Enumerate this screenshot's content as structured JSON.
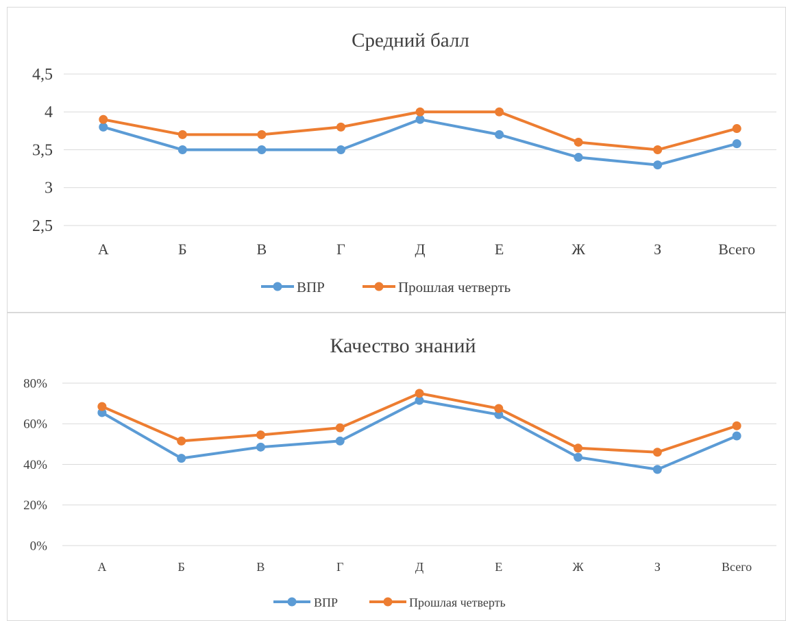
{
  "chart_data": [
    {
      "type": "line",
      "title": "Средний балл",
      "categories": [
        "А",
        "Б",
        "В",
        "Г",
        "Д",
        "Е",
        "Ж",
        "З",
        "Всего"
      ],
      "ylim": [
        2.5,
        4.5
      ],
      "y_ticks": [
        "2,5",
        "3",
        "3,5",
        "4",
        "4,5"
      ],
      "grid": true,
      "legend": "bottom",
      "series": [
        {
          "name": "ВПР",
          "color": "#5b9bd5",
          "values": [
            3.8,
            3.5,
            3.5,
            3.5,
            3.9,
            3.7,
            3.4,
            3.3,
            3.58
          ]
        },
        {
          "name": "Прошлая четверть",
          "color": "#ed7d31",
          "values": [
            3.9,
            3.7,
            3.7,
            3.8,
            4.0,
            4.0,
            3.6,
            3.5,
            3.78
          ]
        }
      ]
    },
    {
      "type": "line",
      "title": "Качество знаний",
      "categories": [
        "А",
        "Б",
        "В",
        "Г",
        "Д",
        "Е",
        "Ж",
        "З",
        "Всего"
      ],
      "ylim": [
        0,
        80
      ],
      "y_ticks": [
        "0%",
        "20%",
        "40%",
        "60%",
        "80%"
      ],
      "grid": true,
      "legend": "bottom",
      "series": [
        {
          "name": "ВПР",
          "color": "#5b9bd5",
          "values": [
            65.5,
            43,
            48.5,
            51.5,
            71.5,
            64.5,
            43.5,
            37.5,
            54
          ]
        },
        {
          "name": "Прошлая четверть",
          "color": "#ed7d31",
          "values": [
            68.5,
            51.5,
            54.5,
            58,
            75,
            67.5,
            48,
            46,
            59
          ]
        }
      ]
    }
  ]
}
